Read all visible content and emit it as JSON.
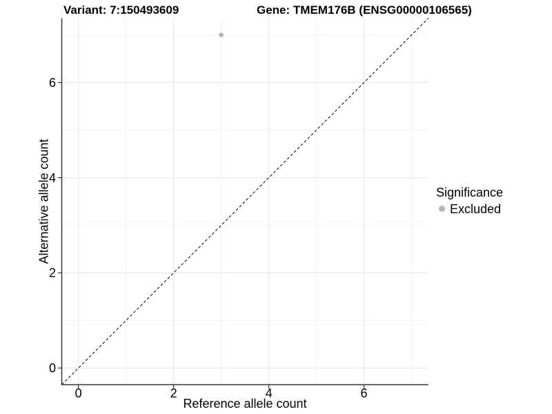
{
  "title": {
    "variant": "Variant: 7:150493609",
    "gene": "Gene: TMEM176B (ENSG00000106565)"
  },
  "chart_data": {
    "type": "scatter",
    "xlabel": "Reference allele count",
    "ylabel": "Alternative allele count",
    "x_ticks": [
      0,
      2,
      4,
      6
    ],
    "y_ticks": [
      0,
      2,
      4,
      6
    ],
    "grid_major": [
      0,
      2,
      4,
      6
    ],
    "grid_minor": [
      1,
      3,
      5,
      7
    ],
    "xlim": [
      -0.35,
      7.35
    ],
    "ylim": [
      -0.35,
      7.35
    ],
    "grid": "on",
    "points": [
      {
        "x": 3,
        "y": 7,
        "significance": "Excluded"
      }
    ],
    "identity_line": {
      "from": -0.35,
      "to": 7.35,
      "style": "dashed",
      "color": "#000000"
    },
    "legend": {
      "position": "right",
      "title": "Significance",
      "entries": [
        {
          "label": "Excluded",
          "color": "#b5b5b5"
        }
      ]
    },
    "colors": {
      "point": "#b5b5b5",
      "grid_major": "#eaeaea",
      "grid_minor": "#f3f3f3",
      "axis": "#333333",
      "text": "#000000",
      "background": "#ffffff"
    }
  }
}
